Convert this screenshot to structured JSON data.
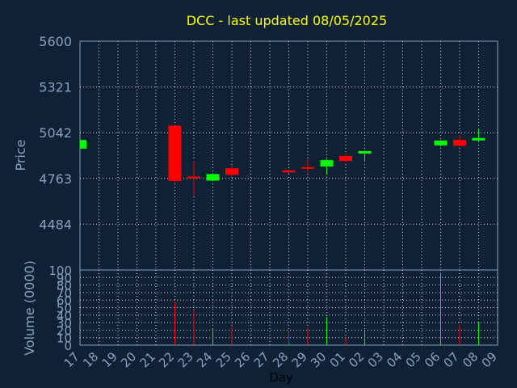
{
  "chart_data": {
    "type": "candlestick",
    "title": "DCC - last updated 08/05/2025",
    "xlabel": "Day",
    "ylabel_price": "Price",
    "ylabel_volume": "Volume (0000)",
    "x_ticks": [
      "17",
      "18",
      "19",
      "20",
      "21",
      "22",
      "23",
      "24",
      "25",
      "26",
      "27",
      "28",
      "29",
      "30",
      "01",
      "02",
      "03",
      "04",
      "05",
      "06",
      "07",
      "08",
      "09"
    ],
    "price_ylim": [
      4205,
      5600
    ],
    "price_ticks": [
      "5600",
      "5321",
      "5042",
      "4763",
      "4484"
    ],
    "volume_ylim": [
      0,
      100
    ],
    "volume_ticks": [
      "100",
      "90",
      "80",
      "70",
      "60",
      "50",
      "40",
      "30",
      "20",
      "10",
      "0"
    ],
    "grid": true,
    "colors": {
      "background": "#0f2135",
      "grid": "#d0d8e0",
      "axis_text": "#8aa0c0",
      "title": "#ffff00",
      "up": "#00ff00",
      "down": "#ff0000"
    },
    "candles": [
      {
        "day": "17",
        "open": 4945,
        "high": 4998,
        "low": 4945,
        "close": 4998,
        "volume": 0
      },
      {
        "day": "22",
        "open": 5085,
        "high": 5085,
        "low": 4740,
        "close": 4748,
        "volume": 58
      },
      {
        "day": "23",
        "open": 4775,
        "high": 4870,
        "low": 4660,
        "close": 4765,
        "volume": 48
      },
      {
        "day": "24",
        "open": 4750,
        "high": 4795,
        "low": 4745,
        "close": 4790,
        "volume": 22
      },
      {
        "day": "25",
        "open": 4825,
        "high": 4845,
        "low": 4780,
        "close": 4785,
        "volume": 26
      },
      {
        "day": "28",
        "open": 4812,
        "high": 4820,
        "low": 4795,
        "close": 4800,
        "volume": 19
      },
      {
        "day": "29",
        "open": 4832,
        "high": 4880,
        "low": 4800,
        "close": 4823,
        "volume": 23
      },
      {
        "day": "30",
        "open": 4836,
        "high": 4880,
        "low": 4790,
        "close": 4875,
        "volume": 37
      },
      {
        "day": "01",
        "open": 4900,
        "high": 4915,
        "low": 4860,
        "close": 4870,
        "volume": 10
      },
      {
        "day": "02",
        "open": 4915,
        "high": 4935,
        "low": 4865,
        "close": 4930,
        "volume": 20
      },
      {
        "day": "06",
        "open": 4965,
        "high": 4995,
        "low": 4960,
        "close": 4995,
        "volume": 96
      },
      {
        "day": "07",
        "open": 4998,
        "high": 5030,
        "low": 4960,
        "close": 4962,
        "volume": 27
      },
      {
        "day": "08",
        "open": 4995,
        "high": 5060,
        "low": 4990,
        "close": 5010,
        "volume": 31
      }
    ]
  }
}
